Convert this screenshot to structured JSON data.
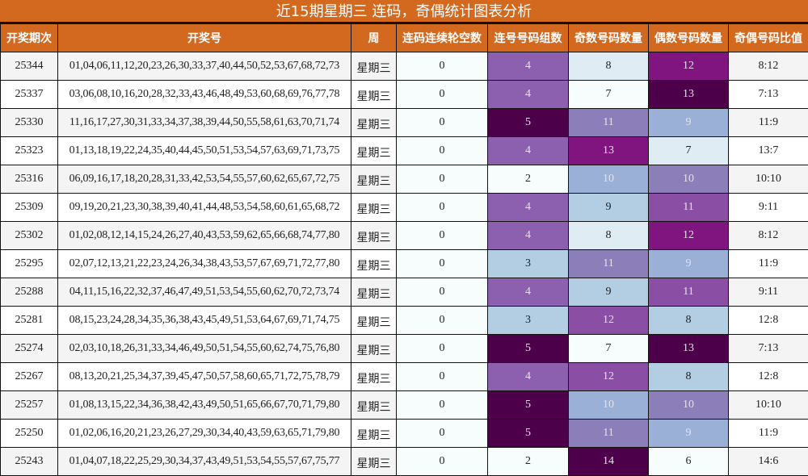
{
  "title": "近15期星期三 连码，奇偶统计图表分析",
  "headers": [
    "开奖期次",
    "开奖号",
    "周",
    "连码连续轮空数",
    "连号号码组数",
    "奇数号码数量",
    "偶数号码数量",
    "奇偶号码比值"
  ],
  "colors": {
    "header_bg": "#d2691e",
    "scale": {
      "c1": "#f7fcfd",
      "c2": "#e0ecf4",
      "c3": "#b3cde3",
      "c4": "#9ab0d6",
      "c5": "#8c7fb9",
      "c6": "#8a4ea4",
      "c7": "#8c60ae",
      "c8": "#81157f",
      "c9": "#4d0049"
    }
  },
  "rows": [
    {
      "period": "25344",
      "numbers": "01,04,06,11,12,20,23,26,30,33,37,40,44,50,52,53,67,68,72,73",
      "weekday": "星期三",
      "gap": "0",
      "consec": "4",
      "odd": "8",
      "even": "12",
      "ratio": "8:12"
    },
    {
      "period": "25337",
      "numbers": "03,06,08,10,16,20,28,32,33,43,46,48,49,53,60,68,69,76,77,78",
      "weekday": "星期三",
      "gap": "0",
      "consec": "4",
      "odd": "7",
      "even": "13",
      "ratio": "7:13"
    },
    {
      "period": "25330",
      "numbers": "11,16,17,27,30,31,33,34,37,38,39,44,50,55,58,61,63,70,71,74",
      "weekday": "星期三",
      "gap": "0",
      "consec": "5",
      "odd": "11",
      "even": "9",
      "ratio": "11:9"
    },
    {
      "period": "25323",
      "numbers": "01,13,18,19,22,24,35,40,44,45,50,51,53,54,57,63,69,71,73,75",
      "weekday": "星期三",
      "gap": "0",
      "consec": "4",
      "odd": "13",
      "even": "7",
      "ratio": "13:7"
    },
    {
      "period": "25316",
      "numbers": "06,09,16,17,18,20,28,31,33,42,53,54,55,57,60,62,65,67,72,75",
      "weekday": "星期三",
      "gap": "0",
      "consec": "2",
      "odd": "10",
      "even": "10",
      "ratio": "10:10"
    },
    {
      "period": "25309",
      "numbers": "09,19,20,21,23,30,38,39,40,41,44,48,53,54,58,60,61,65,68,72",
      "weekday": "星期三",
      "gap": "0",
      "consec": "4",
      "odd": "9",
      "even": "11",
      "ratio": "9:11"
    },
    {
      "period": "25302",
      "numbers": "01,02,08,12,14,15,24,26,27,40,43,53,59,62,65,66,68,74,77,80",
      "weekday": "星期三",
      "gap": "0",
      "consec": "4",
      "odd": "8",
      "even": "12",
      "ratio": "8:12"
    },
    {
      "period": "25295",
      "numbers": "02,07,12,13,21,22,23,24,26,34,38,43,53,57,67,69,71,72,77,80",
      "weekday": "星期三",
      "gap": "0",
      "consec": "3",
      "odd": "11",
      "even": "9",
      "ratio": "11:9"
    },
    {
      "period": "25288",
      "numbers": "04,11,15,16,22,32,37,46,47,49,51,53,54,55,60,62,70,72,73,74",
      "weekday": "星期三",
      "gap": "0",
      "consec": "4",
      "odd": "9",
      "even": "11",
      "ratio": "9:11"
    },
    {
      "period": "25281",
      "numbers": "08,15,23,24,28,34,35,36,38,43,45,49,51,53,64,67,69,71,74,75",
      "weekday": "星期三",
      "gap": "0",
      "consec": "3",
      "odd": "12",
      "even": "8",
      "ratio": "12:8"
    },
    {
      "period": "25274",
      "numbers": "02,03,10,18,26,31,33,34,46,49,50,51,54,55,60,62,74,75,76,80",
      "weekday": "星期三",
      "gap": "0",
      "consec": "5",
      "odd": "7",
      "even": "13",
      "ratio": "7:13"
    },
    {
      "period": "25267",
      "numbers": "08,13,20,21,25,34,37,39,45,47,50,57,58,60,65,71,72,75,78,79",
      "weekday": "星期三",
      "gap": "0",
      "consec": "4",
      "odd": "12",
      "even": "8",
      "ratio": "12:8"
    },
    {
      "period": "25257",
      "numbers": "01,08,13,15,22,34,36,38,42,43,49,50,51,65,66,67,70,71,79,80",
      "weekday": "星期三",
      "gap": "0",
      "consec": "5",
      "odd": "10",
      "even": "10",
      "ratio": "10:10"
    },
    {
      "period": "25250",
      "numbers": "01,02,06,16,20,21,23,26,27,29,30,34,40,43,59,63,65,71,79,80",
      "weekday": "星期三",
      "gap": "0",
      "consec": "5",
      "odd": "11",
      "even": "9",
      "ratio": "11:9"
    },
    {
      "period": "25243",
      "numbers": "01,04,07,18,22,25,29,30,34,37,43,49,51,53,54,55,57,67,75,77",
      "weekday": "星期三",
      "gap": "0",
      "consec": "2",
      "odd": "14",
      "even": "6",
      "ratio": "14:6"
    }
  ]
}
